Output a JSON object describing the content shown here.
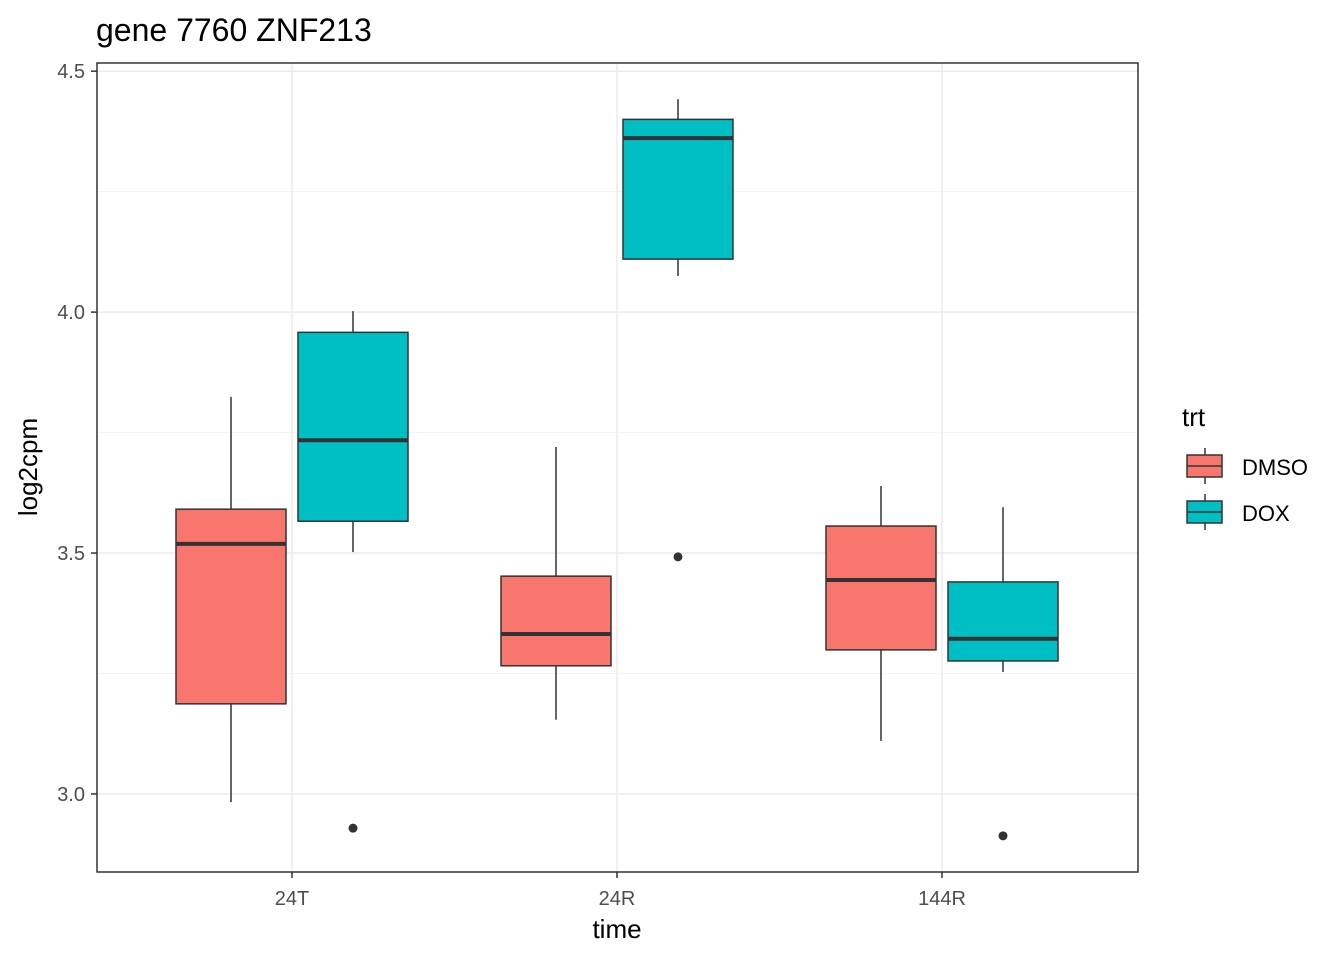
{
  "chart_data": {
    "type": "boxplot",
    "title": "gene 7760 ZNF213",
    "xlabel": "time",
    "ylabel": "log2cpm",
    "categories": [
      "24T",
      "24R",
      "144R"
    ],
    "ylim": [
      2.838,
      4.517
    ],
    "yticks": [
      3.0,
      3.5,
      4.0,
      4.5
    ],
    "ytick_labels": [
      "3.0",
      "3.5",
      "4.0",
      "4.5"
    ],
    "grid": true,
    "legend": {
      "title": "trt",
      "placement": "right",
      "entries": [
        "DMSO",
        "DOX"
      ]
    },
    "series": [
      {
        "name": "DMSO",
        "color": "#F8766D",
        "boxes": [
          {
            "category": "24T",
            "whisker_low": 2.983,
            "q1": 3.187,
            "median": 3.519,
            "q3": 3.591,
            "whisker_high": 3.824,
            "outliers": []
          },
          {
            "category": "24R",
            "whisker_low": 3.154,
            "q1": 3.266,
            "median": 3.332,
            "q3": 3.452,
            "whisker_high": 3.72,
            "outliers": []
          },
          {
            "category": "144R",
            "whisker_low": 3.11,
            "q1": 3.299,
            "median": 3.444,
            "q3": 3.556,
            "whisker_high": 3.639,
            "outliers": []
          }
        ]
      },
      {
        "name": "DOX",
        "color": "#00BFC4",
        "boxes": [
          {
            "category": "24T",
            "whisker_low": 3.502,
            "q1": 3.566,
            "median": 3.734,
            "q3": 3.958,
            "whisker_high": 4.002,
            "outliers": [
              2.929
            ]
          },
          {
            "category": "24R",
            "whisker_low": 4.075,
            "q1": 4.11,
            "median": 4.361,
            "q3": 4.4,
            "whisker_high": 4.442,
            "outliers": [
              3.492
            ]
          },
          {
            "category": "144R",
            "whisker_low": 3.253,
            "q1": 3.276,
            "median": 3.322,
            "q3": 3.44,
            "whisker_high": 3.595,
            "outliers": [
              2.913
            ]
          }
        ]
      }
    ]
  }
}
